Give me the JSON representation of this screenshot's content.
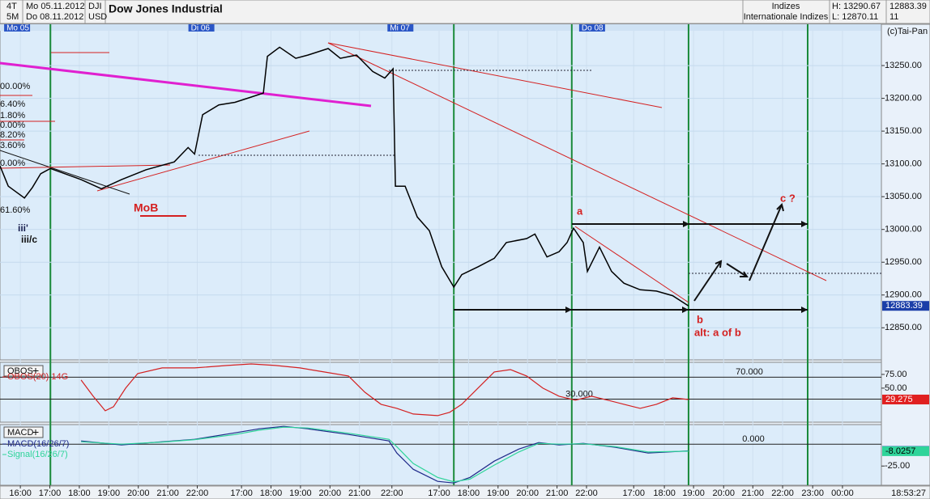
{
  "header": {
    "period_a": "4T",
    "period_b": "5M",
    "date_from": "Mo 05.11.2012",
    "date_to": "Do 08.11.2012",
    "currency": "USD",
    "group": "Indizes",
    "subgroup": "Internationale Indizes",
    "high": "H: 13290.67",
    "low": "L: 12870.11",
    "count": "11",
    "copyright": "(c)Tai-Pan",
    "clock": "18:53:27"
  },
  "chart_data": [
    {
      "type": "line",
      "title": "Dow Jones Industrial",
      "x": [
        -0.69,
        -0.41,
        0.14,
        0.41,
        0.69,
        1.02,
        1.51,
        2.06,
        2.75,
        3.43,
        4.26,
        5.22,
        5.69,
        5.91,
        6.18,
        6.73,
        7.28,
        7.83,
        8.24,
        8.38,
        8.79,
        9.34,
        9.75,
        10.44,
        10.85,
        11.4,
        11.95,
        12.36,
        12.64,
        12.72,
        13.05,
        13.46,
        13.87,
        14.29,
        14.7,
        14.97,
        15.52,
        16.07,
        16.48,
        17.17,
        17.45,
        17.86,
        18.27,
        18.54,
        18.76,
        19.09,
        19.23,
        19.64,
        20.05,
        20.47,
        21.02,
        21.57,
        22.12,
        22.66
      ],
      "series": [
        {
          "name": "DJI",
          "color": "#000000",
          "values": [
            13097,
            13066,
            13048,
            13064,
            13085,
            13093,
            13085,
            13076,
            13062,
            13076,
            13091,
            13103,
            13125,
            13115,
            13175,
            13190,
            13194,
            13202,
            13208,
            13264,
            13278,
            13261,
            13266,
            13276,
            13261,
            13266,
            13241,
            13231,
            13245,
            13066,
            13066,
            13019,
            12998,
            12943,
            12912,
            12931,
            12943,
            12956,
            12980,
            12986,
            12993,
            12958,
            12966,
            12980,
            13002,
            12980,
            12936,
            12973,
            12936,
            12918,
            12908,
            12906,
            12899,
            12883.39
          ]
        }
      ],
      "xlim": [
        -0.69,
        29.2
      ],
      "xticks": [
        {
          "value": 0,
          "label": "16:00"
        },
        {
          "value": 1,
          "label": "17:00"
        },
        {
          "value": 2,
          "label": "18:00"
        },
        {
          "value": 3,
          "label": "19:00"
        },
        {
          "value": 4,
          "label": "20:00"
        },
        {
          "value": 5,
          "label": "21:00"
        },
        {
          "value": 6,
          "label": "22:00"
        },
        {
          "value": 7.5,
          "label": "17:00"
        },
        {
          "value": 8.5,
          "label": "18:00"
        },
        {
          "value": 9.5,
          "label": "19:00"
        },
        {
          "value": 10.5,
          "label": "20:00"
        },
        {
          "value": 11.5,
          "label": "21:00"
        },
        {
          "value": 12.6,
          "label": "22:00"
        },
        {
          "value": 14.2,
          "label": "17:00"
        },
        {
          "value": 15.2,
          "label": "18:00"
        },
        {
          "value": 16.2,
          "label": "19:00"
        },
        {
          "value": 17.2,
          "label": "20:00"
        },
        {
          "value": 18.2,
          "label": "21:00"
        },
        {
          "value": 19.2,
          "label": "22:00"
        },
        {
          "value": 20.8,
          "label": "17:00"
        },
        {
          "value": 21.84,
          "label": "18:00"
        },
        {
          "value": 22.83,
          "label": "19:00"
        },
        {
          "value": 23.85,
          "label": "20:00"
        },
        {
          "value": 24.84,
          "label": "21:00"
        },
        {
          "value": 25.85,
          "label": "22:00"
        },
        {
          "value": 26.87,
          "label": "23:00"
        },
        {
          "value": 27.88,
          "label": "00:00"
        }
      ],
      "day_labels": [
        {
          "value": -0.55,
          "label": "Mo 05"
        },
        {
          "value": 5.7,
          "label": "Di 06"
        },
        {
          "value": 12.45,
          "label": "Mi 07"
        },
        {
          "value": 18.95,
          "label": "Do 08"
        }
      ],
      "vlines": [
        1.02,
        14.7,
        18.7,
        22.66,
        26.7
      ],
      "vline_color": "#1a8a3a",
      "ylim": [
        12801,
        13313
      ],
      "yticks": [
        {
          "value": 13250,
          "label": "13250.00"
        },
        {
          "value": 13200,
          "label": "13200.00"
        },
        {
          "value": 13150,
          "label": "13150.00"
        },
        {
          "value": 13100,
          "label": "13100.00"
        },
        {
          "value": 13050,
          "label": "13050.00"
        },
        {
          "value": 13000,
          "label": "13000.00"
        },
        {
          "value": 12950,
          "label": "12950.00"
        },
        {
          "value": 12900,
          "label": "12900.00"
        },
        {
          "value": 12850,
          "label": "12850.00"
        }
      ],
      "grid": true,
      "fib_labels": [
        "00.00%",
        "6.40%",
        "1.80%",
        "0.00%",
        "8.20%",
        "3.60%",
        "0.00%",
        "61.60%"
      ],
      "annotations": [
        "MoB",
        "iii'",
        "iii/c",
        "a",
        "b",
        "alt: a of b",
        "c ?"
      ]
    },
    {
      "type": "line",
      "title": "OBOS",
      "x": [
        2.06,
        2.47,
        2.88,
        3.16,
        3.57,
        3.98,
        4.81,
        5.91,
        7.01,
        7.83,
        8.65,
        9.48,
        10.3,
        11.13,
        11.68,
        12.23,
        12.77,
        13.32,
        14.15,
        14.56,
        14.97,
        15.52,
        16.07,
        16.62,
        17.17,
        17.72,
        18.27,
        18.82,
        19.37,
        19.92,
        20.47,
        21.02,
        21.57,
        22.12,
        22.66
      ],
      "series": [
        {
          "name": "OBOS(20) 14G",
          "color": "#d42020",
          "values": [
            64.7,
            35.3,
            8.8,
            16.2,
            50,
            76.5,
            86.8,
            86.8,
            91.2,
            94.1,
            91.2,
            86.8,
            79.4,
            72.1,
            42.6,
            20.6,
            13.2,
            2.9,
            0,
            5.9,
            20.6,
            50,
            79.4,
            83.8,
            72.1,
            50,
            35.3,
            28,
            35.3,
            28,
            20.6,
            13.2,
            20.6,
            32.4,
            29.275
          ]
        }
      ],
      "xlim": [
        -0.69,
        29.2
      ],
      "ylim": [
        -12,
        97
      ],
      "yticks": [
        {
          "value": 75,
          "label": "75.00"
        },
        {
          "value": 50,
          "label": "50.00"
        }
      ],
      "levels": [
        {
          "value": 70,
          "label": "70.000"
        },
        {
          "value": 30,
          "label": "30.000"
        }
      ]
    },
    {
      "type": "line",
      "title": "MACD",
      "x": [
        2.06,
        3.43,
        4.81,
        5.91,
        7.28,
        8.1,
        8.93,
        9.75,
        11.13,
        12.5,
        12.77,
        13.32,
        14.15,
        14.7,
        15.25,
        16.07,
        16.9,
        17.58,
        18.27,
        19.09,
        20.19,
        21.29,
        22.66
      ],
      "series": [
        {
          "name": "MACD(16/26/7)",
          "color": "#1f2a8a",
          "values": [
            3.7,
            -0.9,
            2.8,
            5.6,
            13,
            17.6,
            20.4,
            17.6,
            11.1,
            3.7,
            -10.2,
            -28.7,
            -42.6,
            -44.4,
            -38,
            -19.4,
            -5.6,
            1.9,
            -0.9,
            0.9,
            -3.7,
            -10.2,
            -7.6984
          ]
        },
        {
          "name": "Signal(16/26/7)",
          "color": "#2fd49a",
          "values": [
            2.8,
            0,
            2.4,
            5.2,
            11,
            16,
            19.4,
            18.5,
            12.5,
            5.6,
            -3,
            -22,
            -38,
            -43,
            -40,
            -24,
            -9,
            0.9,
            0,
            0.5,
            -3,
            -9,
            -8.0257
          ]
        }
      ],
      "xlim": [
        -0.69,
        29.2
      ],
      "ylim": [
        -47,
        22.4
      ],
      "yticks": [
        {
          "value": -25,
          "label": "-25.00"
        }
      ],
      "levels": [
        {
          "value": 0,
          "label": "0.000"
        }
      ]
    }
  ]
}
